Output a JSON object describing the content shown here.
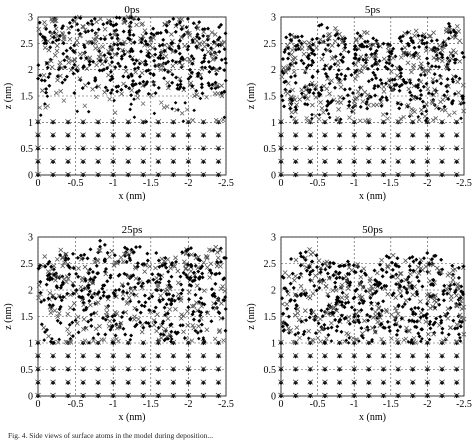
{
  "figure": {
    "caption": "Fig. 4. Side views of surface atoms in the model during deposition..."
  },
  "chart_data": [
    {
      "type": "scatter",
      "title": "0ps",
      "xlabel": "x (nm)",
      "ylabel": "z (nm)",
      "xlim": [
        0,
        -2.5
      ],
      "ylim": [
        0,
        3
      ],
      "x_ticks": [
        "0",
        "-0.5",
        "-1",
        "-1.5",
        "-2",
        "-2.5"
      ],
      "y_ticks": [
        "0",
        "0.5",
        "1",
        "1.5",
        "2",
        "2.5",
        "3"
      ],
      "grid": "dashed",
      "substrate_layers_z": [
        0,
        0.25,
        0.5,
        0.75,
        1.0
      ],
      "substrate_columns_x": [
        0,
        -0.2,
        -0.4,
        -0.6,
        -0.8,
        -1.0,
        -1.2,
        -1.4,
        -1.6,
        -1.8,
        -2.0,
        -2.2,
        -2.4
      ],
      "deposited_film_z_range": [
        1.5,
        3.0
      ],
      "lower_cluster_z_range": [
        1.0,
        1.5
      ]
    },
    {
      "type": "scatter",
      "title": "5ps",
      "xlabel": "x (nm)",
      "ylabel": "z (nm)",
      "xlim": [
        0,
        -2.5
      ],
      "ylim": [
        0,
        3
      ],
      "x_ticks": [
        "0",
        "-0.5",
        "-1",
        "-1.5",
        "-2",
        "-2.5"
      ],
      "y_ticks": [
        "0",
        "0.5",
        "1",
        "1.5",
        "2",
        "2.5",
        "3"
      ],
      "grid": "dashed",
      "substrate_layers_z": [
        0,
        0.25,
        0.5,
        0.75,
        1.0
      ],
      "substrate_columns_x": [
        0,
        -0.2,
        -0.4,
        -0.6,
        -0.8,
        -1.0,
        -1.2,
        -1.4,
        -1.6,
        -1.8,
        -2.0,
        -2.2,
        -2.4
      ],
      "deposited_film_z_range": [
        1.2,
        2.7
      ],
      "lower_cluster_z_range": [
        1.0,
        1.2
      ]
    },
    {
      "type": "scatter",
      "title": "25ps",
      "xlabel": "x (nm)",
      "ylabel": "z (nm)",
      "xlim": [
        0,
        -2.5
      ],
      "ylim": [
        0,
        3
      ],
      "x_ticks": [
        "0",
        "-0.5",
        "-1",
        "-1.5",
        "-2",
        "-2.5"
      ],
      "y_ticks": [
        "0",
        "0.5",
        "1",
        "1.5",
        "2",
        "2.5",
        "3"
      ],
      "grid": "dashed",
      "substrate_layers_z": [
        0,
        0.25,
        0.5,
        0.75,
        1.0
      ],
      "substrate_columns_x": [
        0,
        -0.2,
        -0.4,
        -0.6,
        -0.8,
        -1.0,
        -1.2,
        -1.4,
        -1.6,
        -1.8,
        -2.0,
        -2.2,
        -2.4
      ],
      "deposited_film_z_range": [
        1.1,
        2.8
      ],
      "lower_cluster_z_range": [
        1.0,
        1.1
      ]
    },
    {
      "type": "scatter",
      "title": "50ps",
      "xlabel": "x (nm)",
      "ylabel": "z (nm)",
      "xlim": [
        0,
        -2.5
      ],
      "ylim": [
        0,
        3
      ],
      "x_ticks": [
        "0",
        "-0.5",
        "-1",
        "-1.5",
        "-2",
        "-2.5"
      ],
      "y_ticks": [
        "0",
        "0.5",
        "1",
        "1.5",
        "2",
        "2.5",
        "3"
      ],
      "grid": "dashed",
      "substrate_layers_z": [
        0,
        0.25,
        0.5,
        0.75,
        1.0
      ],
      "substrate_columns_x": [
        0,
        -0.2,
        -0.4,
        -0.6,
        -0.8,
        -1.0,
        -1.2,
        -1.4,
        -1.6,
        -1.8,
        -2.0,
        -2.2,
        -2.4
      ],
      "deposited_film_z_range": [
        1.1,
        2.6
      ],
      "lower_cluster_z_range": [
        1.0,
        1.1
      ]
    }
  ]
}
